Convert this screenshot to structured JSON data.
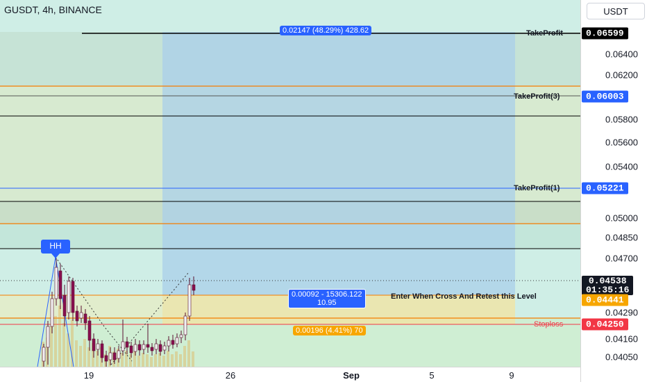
{
  "header": {
    "symbol_title": "GUSDT, 4h, BINANCE",
    "currency_button": "USDT"
  },
  "price_axis": {
    "ticks": [
      "0.06400",
      "0.06200",
      "0.05800",
      "0.05600",
      "0.05400",
      "0.05000",
      "0.04850",
      "0.04700",
      "0.04290",
      "0.04160",
      "0.04050"
    ],
    "tags": {
      "take_profit": "0.06599",
      "take_profit_3": "0.06003",
      "take_profit_1": "0.05221",
      "current_price": "0.04538",
      "countdown": "01:35:16",
      "entry": "0.04441",
      "stoploss": "0.04250"
    }
  },
  "time_axis": {
    "ticks": [
      "19",
      "26",
      "Sep",
      "5",
      "9"
    ]
  },
  "levels": {
    "take_profit": "TakeProfit",
    "take_profit_3": "TakeProfit(3)",
    "take_profit_1": "TakeProfit(1)",
    "entry_note": "Enter When Cross And Retest this Level",
    "stoploss": "Stoploss"
  },
  "annotations": {
    "hh": "HH",
    "target_box": "0.02147 (48.29%) 428.62",
    "position_box_line1": "0.00092 - 15306.122",
    "position_box_line2": "10.95",
    "stop_box": "0.00196 (4.41%) 70"
  },
  "colors": {
    "take_profit_tag": "#000000",
    "target_tag": "#2962ff",
    "entry_tag": "#f7a600",
    "stoploss_tag": "#f23645",
    "current_tag": "#131722",
    "candle_up": "#f2f2f2",
    "candle_down": "#880e4f"
  }
}
